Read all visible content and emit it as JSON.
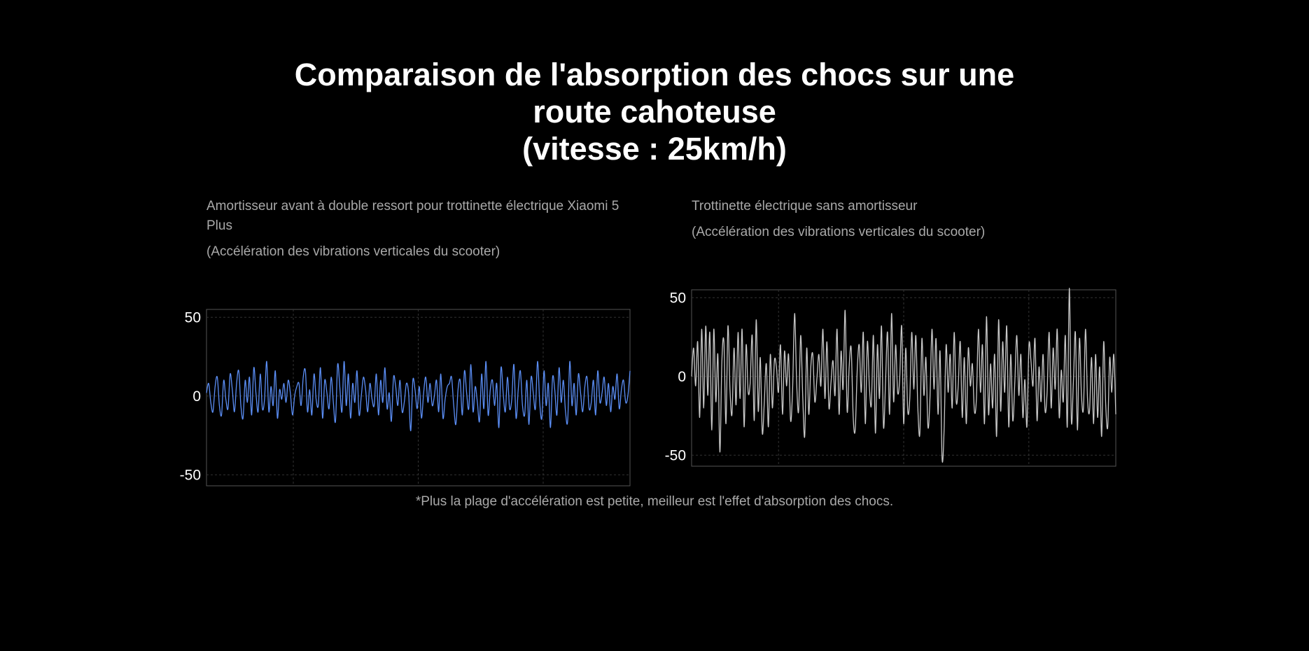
{
  "page": {
    "title_line1": "Comparaison de l'absorption des chocs sur une",
    "title_line2": "route cahoteuse",
    "title_line3": "(vitesse : 25km/h)",
    "footnote": "*Plus la plage d'accélération est petite, meilleur est l'effet d'absorption des chocs."
  },
  "colors": {
    "background": "#000000",
    "left_series": "#5b8ef5",
    "right_series": "#c8c8c8",
    "frame": "#555555",
    "grid": "#333333"
  },
  "chart_data": [
    {
      "type": "line",
      "title": "Amortisseur avant à double ressort pour trottinette électrique Xiaomi 5 Plus",
      "subtitle": "(Accélération des vibrations verticales du scooter)",
      "xlabel": "",
      "ylabel": "",
      "ylim": [
        -57,
        55
      ],
      "yticks": [
        "50",
        "0",
        "-50"
      ],
      "ytick_values": [
        50,
        0,
        -50
      ],
      "grid": true,
      "series": [
        {
          "values": [
            2,
            8,
            -4,
            -10,
            6,
            12,
            -6,
            -12,
            10,
            -2,
            -8,
            14,
            4,
            -10,
            8,
            16,
            -6,
            -14,
            10,
            -4,
            12,
            -12,
            18,
            2,
            -10,
            14,
            -8,
            -2,
            22,
            -10,
            6,
            -6,
            16,
            -14,
            4,
            -2,
            8,
            -4,
            10,
            2,
            -12,
            0,
            6,
            8,
            -6,
            12,
            16,
            -10,
            4,
            -12,
            14,
            -2,
            -6,
            18,
            -14,
            10,
            2,
            -8,
            12,
            -4,
            -16,
            20,
            6,
            -10,
            22,
            -6,
            14,
            -14,
            8,
            -4,
            16,
            -12,
            0,
            12,
            4,
            -10,
            8,
            -2,
            -6,
            14,
            -12,
            10,
            -4,
            18,
            -8,
            2,
            -16,
            12,
            6,
            -6,
            10,
            -10,
            -4,
            8,
            2,
            -22,
            10,
            4,
            -8,
            6,
            -14,
            2,
            12,
            -4,
            8,
            -6,
            0,
            10,
            -10,
            14,
            -14,
            -2,
            6,
            8,
            12,
            -6,
            -18,
            4,
            10,
            -12,
            16,
            2,
            -8,
            20,
            -10,
            6,
            -4,
            -16,
            14,
            -8,
            22,
            -12,
            4,
            10,
            -6,
            8,
            -20,
            18,
            2,
            -10,
            12,
            -8,
            -2,
            20,
            -14,
            4,
            16,
            -6,
            -12,
            10,
            -18,
            12,
            2,
            -8,
            22,
            -4,
            -14,
            16,
            -6,
            8,
            -20,
            12,
            4,
            -12,
            18,
            -4,
            10,
            -10,
            -16,
            22,
            -6,
            8,
            -12,
            14,
            2,
            -10,
            6,
            12,
            -8,
            -4,
            10,
            -12,
            16,
            -4,
            2,
            12,
            -6,
            8,
            -10,
            6,
            -2,
            14,
            -8,
            4,
            10,
            -4,
            0,
            16
          ]
        }
      ]
    },
    {
      "type": "line",
      "title": "Trottinette électrique sans amortisseur",
      "subtitle": "(Accélération des vibrations verticales du scooter)",
      "xlabel": "",
      "ylabel": "",
      "ylim": [
        -57,
        55
      ],
      "yticks": [
        "50",
        "0",
        "-50"
      ],
      "ytick_values": [
        50,
        0,
        -50
      ],
      "grid": true,
      "series": [
        {
          "values": [
            0,
            18,
            -6,
            22,
            -26,
            30,
            -20,
            32,
            -12,
            28,
            -34,
            30,
            -16,
            14,
            -48,
            10,
            22,
            -30,
            32,
            -8,
            -24,
            18,
            -18,
            28,
            -14,
            30,
            -32,
            20,
            -10,
            -4,
            26,
            -28,
            36,
            -22,
            12,
            -36,
            -16,
            8,
            -32,
            14,
            -20,
            10,
            6,
            -10,
            20,
            -24,
            16,
            -6,
            14,
            -28,
            -8,
            40,
            -4,
            -22,
            26,
            -12,
            -38,
            18,
            -24,
            6,
            14,
            -16,
            -2,
            14,
            -6,
            30,
            -14,
            22,
            -20,
            -4,
            10,
            -12,
            30,
            -24,
            16,
            -8,
            42,
            -22,
            6,
            18,
            -26,
            -34,
            4,
            20,
            -10,
            28,
            -30,
            22,
            -6,
            -18,
            26,
            -36,
            20,
            -14,
            32,
            -32,
            -4,
            28,
            -24,
            40,
            -16,
            20,
            -10,
            -2,
            32,
            -30,
            18,
            -22,
            -14,
            28,
            -8,
            26,
            -20,
            -36,
            24,
            -12,
            12,
            -32,
            -14,
            30,
            -8,
            24,
            -24,
            16,
            -52,
            -34,
            20,
            -10,
            14,
            -20,
            28,
            -16,
            -6,
            22,
            -26,
            12,
            -30,
            18,
            -6,
            8,
            -22,
            -14,
            30,
            -10,
            20,
            -30,
            38,
            -24,
            8,
            -20,
            14,
            -38,
            36,
            -22,
            22,
            -10,
            32,
            -32,
            14,
            -28,
            -4,
            26,
            -12,
            14,
            -26,
            -2,
            -32,
            20,
            10,
            -6,
            24,
            -28,
            6,
            -16,
            14,
            -22,
            -10,
            28,
            -20,
            18,
            -8,
            30,
            -26,
            4,
            -16,
            26,
            -32,
            56,
            -28,
            -4,
            28,
            -34,
            24,
            -12,
            -20,
            30,
            -14,
            -22,
            12,
            -30,
            14,
            -26,
            6,
            -38,
            22,
            -18,
            -32,
            12,
            -10,
            14,
            -24
          ]
        }
      ]
    }
  ]
}
